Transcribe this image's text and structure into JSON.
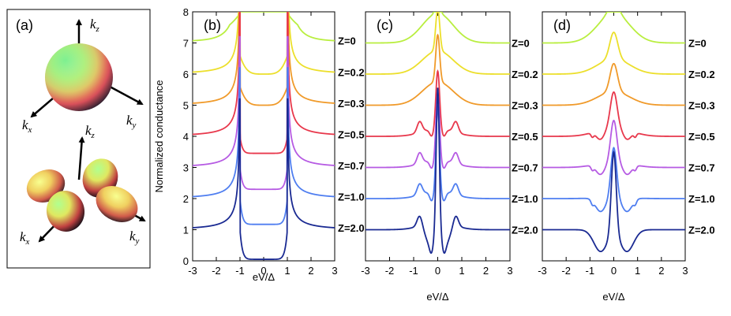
{
  "panel_a": {
    "label": "(a)",
    "top_axes": {
      "kz": "k",
      "kz_sub": "z",
      "ky": "k",
      "ky_sub": "y",
      "kx": "k",
      "kx_sub": "x"
    },
    "bottom_axes": {
      "kz": "k",
      "kz_sub": "z",
      "ky": "k",
      "ky_sub": "y",
      "kx": "k",
      "kx_sub": "x"
    }
  },
  "colors": {
    "Z=0": "#b9ee3f",
    "Z=0.2": "#ecdf2b",
    "Z=0.3": "#f09a2a",
    "Z=0.5": "#e8384c",
    "Z=0.7": "#b65be3",
    "Z=1.0": "#4f7ef0",
    "Z=2.0": "#1a2a92"
  },
  "chart_data": [
    {
      "type": "line",
      "panel": "(b)",
      "xlabel": "eV/Δ",
      "ylabel": "Normalized conductance",
      "xlim": [
        -3,
        3
      ],
      "ylim": [
        0,
        8
      ],
      "xticks": [
        "-3",
        "-2",
        "-1",
        "0",
        "1",
        "2",
        "3"
      ],
      "yticks": [
        "0",
        "1",
        "2",
        "3",
        "4",
        "5",
        "6",
        "7",
        "8"
      ],
      "model": "s-wave",
      "series": [
        {
          "name": "Z=0",
          "z": 0,
          "offset": 6
        },
        {
          "name": "Z=0.2",
          "z": 0.2,
          "offset": 5
        },
        {
          "name": "Z=0.3",
          "z": 0.3,
          "offset": 4
        },
        {
          "name": "Z=0.5",
          "z": 0.5,
          "offset": 3
        },
        {
          "name": "Z=0.7",
          "z": 0.7,
          "offset": 2
        },
        {
          "name": "Z=1.0",
          "z": 1.0,
          "offset": 1
        },
        {
          "name": "Z=2.0",
          "z": 2.0,
          "offset": 0
        }
      ]
    },
    {
      "type": "line",
      "panel": "(c)",
      "xlabel": "eV/Δ",
      "xlim": [
        -3,
        3
      ],
      "ylim": [
        0,
        8
      ],
      "xticks": [
        "-3",
        "-2",
        "-1",
        "0",
        "1",
        "2",
        "3"
      ],
      "model": "d-wave-a",
      "series": [
        {
          "name": "Z=0",
          "z": 0,
          "offset": 6
        },
        {
          "name": "Z=0.2",
          "z": 0.2,
          "offset": 5
        },
        {
          "name": "Z=0.3",
          "z": 0.3,
          "offset": 4
        },
        {
          "name": "Z=0.5",
          "z": 0.5,
          "offset": 3
        },
        {
          "name": "Z=0.7",
          "z": 0.7,
          "offset": 2
        },
        {
          "name": "Z=1.0",
          "z": 1.0,
          "offset": 1
        },
        {
          "name": "Z=2.0",
          "z": 2.0,
          "offset": 0
        }
      ]
    },
    {
      "type": "line",
      "panel": "(d)",
      "xlabel": "eV/Δ",
      "xlim": [
        -3,
        3
      ],
      "ylim": [
        0,
        8
      ],
      "xticks": [
        "-3",
        "-2",
        "-1",
        "0",
        "1",
        "2",
        "3"
      ],
      "model": "d-wave-b",
      "series": [
        {
          "name": "Z=0",
          "z": 0,
          "offset": 6
        },
        {
          "name": "Z=0.2",
          "z": 0.2,
          "offset": 5
        },
        {
          "name": "Z=0.3",
          "z": 0.3,
          "offset": 4
        },
        {
          "name": "Z=0.5",
          "z": 0.5,
          "offset": 3
        },
        {
          "name": "Z=0.7",
          "z": 0.7,
          "offset": 2
        },
        {
          "name": "Z=1.0",
          "z": 1.0,
          "offset": 1
        },
        {
          "name": "Z=2.0",
          "z": 2.0,
          "offset": 0
        }
      ]
    }
  ]
}
